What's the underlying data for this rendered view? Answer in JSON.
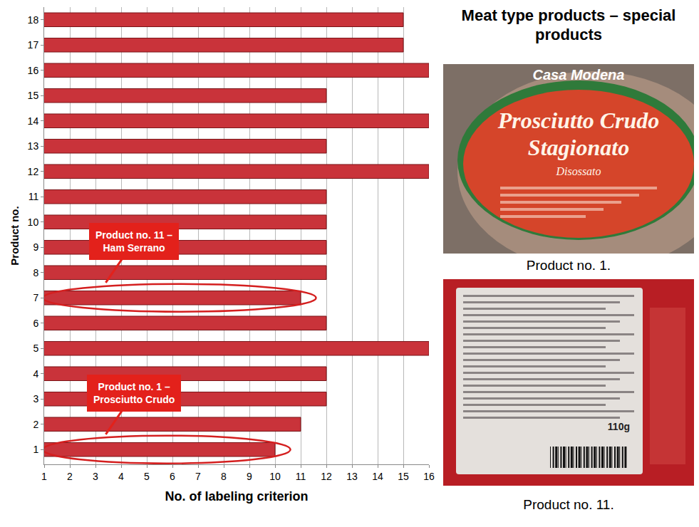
{
  "chart_data": {
    "type": "bar",
    "orientation": "horizontal",
    "categories": [
      "1",
      "2",
      "3",
      "4",
      "5",
      "6",
      "7",
      "8",
      "9",
      "10",
      "11",
      "12",
      "13",
      "14",
      "15",
      "16",
      "17",
      "18"
    ],
    "values": [
      10,
      11,
      12,
      12,
      16,
      12,
      11,
      12,
      12,
      12,
      12,
      16,
      12,
      16,
      12,
      16,
      15,
      15
    ],
    "color": "#c9333a",
    "xlim": [
      1,
      16
    ],
    "xticks": [
      1,
      2,
      3,
      4,
      5,
      6,
      7,
      8,
      9,
      10,
      11,
      12,
      13,
      14,
      15,
      16
    ],
    "x_label": "No. of labeling criterion",
    "y_label": "Product no.",
    "grid": true,
    "annotations": [
      {
        "text": "Product no. 11 – Ham Serrano",
        "category": "7"
      },
      {
        "text": "Product no. 1 – Prosciutto Crudo",
        "category": "1"
      }
    ]
  },
  "panel": {
    "title": "Meat type products – special products",
    "photos": [
      {
        "caption": "Product no. 1.",
        "texts": [
          "Casa Modena",
          "Prosciutto Crudo",
          "Stagionato",
          "Disossato"
        ]
      },
      {
        "caption": "Product no. 11.",
        "texts": [
          "110g"
        ]
      }
    ]
  }
}
